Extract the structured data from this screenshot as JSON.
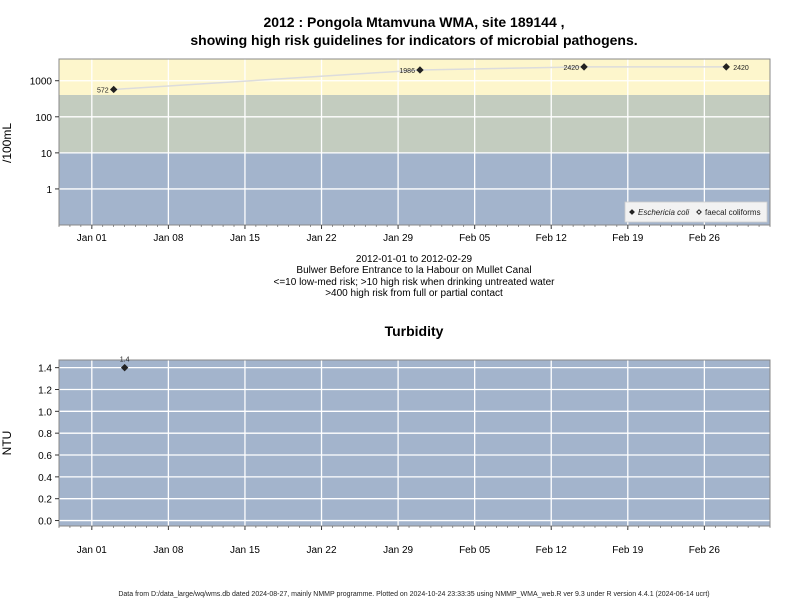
{
  "page": {
    "title_line1": "2012 : Pongola Mtamvuna WMA, site 189144 ,",
    "title_line2": "showing high risk guidelines for indicators of microbial pathogens.",
    "info_lines": [
      "2012-01-01 to 2012-02-29",
      "Bulwer Before Entrance to la Habour on Mullet Canal",
      "<=10 low-med risk; >10 high risk when drinking untreated water",
      ">400 high risk from full or partial contact"
    ],
    "footer": "Data from D:/data_large/wq/wms.db dated 2024-08-27, mainly NMMP programme. Plotted on 2024-10-24 23:33:35 using NMMP_WMA_web.R ver 9.3 under R version 4.4.1 (2024-06-14 ucrt)"
  },
  "colors": {
    "panel_bg": "#a3b4cc",
    "band_high": "#fdf6cc",
    "band_mid": "#c3ccbf",
    "band_low": "#a3b4cc",
    "line": "#dcdcdc",
    "marker": "#222222"
  },
  "chart_data": [
    {
      "type": "line",
      "title": "",
      "xlabel": "",
      "ylabel": "/100mL",
      "y_scale": "log",
      "xlim": [
        "2011-12-29",
        "2012-03-03"
      ],
      "ylim": [
        0.1,
        4000
      ],
      "x_ticks": [
        "2012-01-01",
        "2012-01-08",
        "2012-01-15",
        "2012-01-22",
        "2012-01-29",
        "2012-02-05",
        "2012-02-12",
        "2012-02-19",
        "2012-02-26"
      ],
      "x_tick_labels": [
        "Jan 01",
        "Jan 08",
        "Jan 15",
        "Jan 22",
        "Jan 29",
        "Feb 05",
        "Feb 12",
        "Feb 19",
        "Feb 26"
      ],
      "y_ticks": [
        1,
        10,
        100,
        1000
      ],
      "y_tick_labels": [
        "1",
        "10",
        "100",
        "1000"
      ],
      "bands": [
        {
          "from": 400,
          "to": 4000,
          "color": "#fdf6cc"
        },
        {
          "from": 10,
          "to": 400,
          "color": "#c3ccbf"
        },
        {
          "from": 0.1,
          "to": 10,
          "color": "#a3b4cc"
        }
      ],
      "series": [
        {
          "name": "Eschericia coli",
          "marker": "filled-diamond",
          "points": [
            {
              "x": "2012-01-03",
              "y": 572,
              "label": "572"
            },
            {
              "x": "2012-01-31",
              "y": 1986,
              "label": "1986"
            },
            {
              "x": "2012-02-15",
              "y": 2420,
              "label": "2420"
            },
            {
              "x": "2012-02-28",
              "y": 2420,
              "label": "2420"
            }
          ]
        },
        {
          "name": "faecal coliforms",
          "marker": "open-diamond",
          "points": []
        }
      ],
      "legend": "bottom-right",
      "grid": true
    },
    {
      "type": "scatter",
      "title": "Turbidity",
      "xlabel": "",
      "ylabel": "NTU",
      "y_scale": "linear",
      "xlim": [
        "2011-12-29",
        "2012-03-03"
      ],
      "ylim": [
        -0.05,
        1.47
      ],
      "x_ticks": [
        "2012-01-01",
        "2012-01-08",
        "2012-01-15",
        "2012-01-22",
        "2012-01-29",
        "2012-02-05",
        "2012-02-12",
        "2012-02-19",
        "2012-02-26"
      ],
      "x_tick_labels": [
        "Jan 01",
        "Jan 08",
        "Jan 15",
        "Jan 22",
        "Jan 29",
        "Feb 05",
        "Feb 12",
        "Feb 19",
        "Feb 26"
      ],
      "y_ticks": [
        0.0,
        0.2,
        0.4,
        0.6,
        0.8,
        1.0,
        1.2,
        1.4
      ],
      "y_tick_labels": [
        "0.0",
        "0.2",
        "0.4",
        "0.6",
        "0.8",
        "1.0",
        "1.2",
        "1.4"
      ],
      "series": [
        {
          "points": [
            {
              "x": "2012-01-04",
              "y": 1.4,
              "label": "1.4"
            }
          ]
        }
      ],
      "grid": true
    }
  ]
}
